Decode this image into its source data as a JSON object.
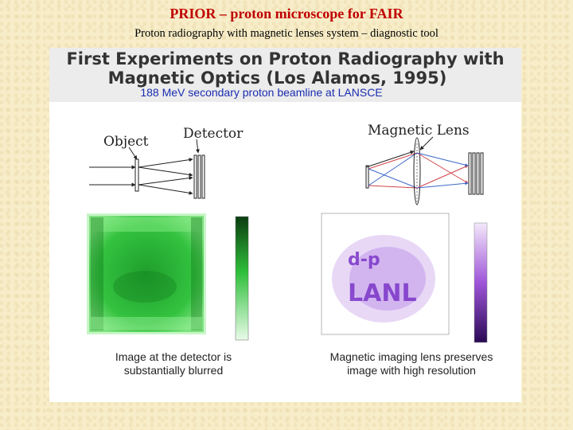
{
  "header": {
    "title": "PRIOR – proton microscope for FAIR",
    "subtitle": "Proton radiography with magnetic lenses system – diagnostic tool"
  },
  "figure": {
    "line1": "First Experiments on Proton Radiography with",
    "line2": "Magnetic Optics (Los Alamos, 1995)",
    "line3": "188 MeV secondary proton beamline at LANSCE",
    "label_object": "Object",
    "label_detector": "Detector",
    "label_lens": "Magnetic Lens",
    "caption_left_1": "Image at the detector is",
    "caption_left_2": "substantially blurred",
    "caption_right_1": "Magnetic imaging lens preserves",
    "caption_right_2": "image with high resolution"
  },
  "colors": {
    "title_red": "#c00000",
    "subtitle_blue": "#1a2db0",
    "green_image": "#2fbf3a",
    "purple_image": "#8a3fd0",
    "beam_red": "#d0454a",
    "beam_blue": "#3b67c9"
  }
}
